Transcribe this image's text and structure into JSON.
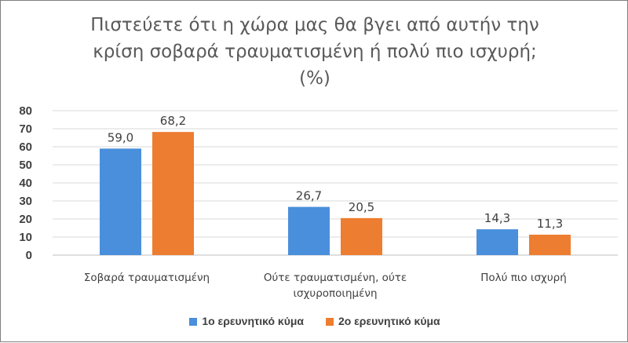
{
  "chart_data": {
    "type": "bar",
    "title": "Πιστεύετε ότι η χώρα μας θα βγει από αυτήν την κρίση σοβαρά τραυματισμένη ή πολύ πιο ισχυρή; (%)",
    "title_lines": [
      "Πιστεύετε ότι η χώρα μας θα βγει από αυτήν την",
      "κρίση σοβαρά τραυματισμένη ή πολύ πιο ισχυρή;",
      "(%)"
    ],
    "categories": [
      [
        "Σοβαρά τραυματισμένη"
      ],
      [
        "Ούτε τραυματισμένη, ούτε",
        "ισχυροποιημένη"
      ],
      [
        "Πολύ πιο ισχυρή"
      ]
    ],
    "series": [
      {
        "name": "1ο ερευνητικό κύμα",
        "color": "#4a8fdc",
        "values": [
          59.0,
          26.7,
          14.3
        ],
        "labels": [
          "59,0",
          "26,7",
          "14,3"
        ]
      },
      {
        "name": "2ο ερευνητικό κύμα",
        "color": "#ed7d31",
        "values": [
          68.2,
          20.5,
          11.3
        ],
        "labels": [
          "68,2",
          "20,5",
          "11,3"
        ]
      }
    ],
    "yticks": [
      0,
      10,
      20,
      30,
      40,
      50,
      60,
      70,
      80
    ],
    "ylim": [
      0,
      80
    ],
    "grid": true,
    "legend_position": "bottom"
  }
}
